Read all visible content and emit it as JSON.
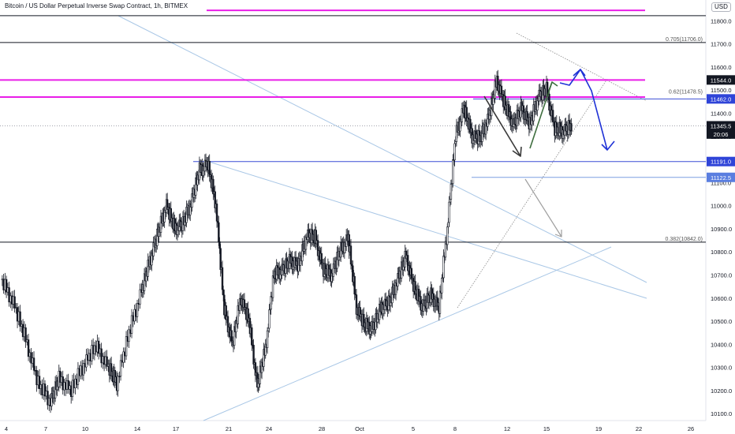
{
  "header": {
    "title": "Bitcoin / US Dollar Perpetual Inverse Swap Contract, 1h, BITMEX",
    "currency": "USD"
  },
  "colors": {
    "candle": "#131722",
    "magenta": "#e91ee8",
    "blue": "#3c4fd6",
    "light_blue": "#a9c7e6",
    "dark_line": "#131722",
    "arrow_blue": "#1f32d6",
    "arrow_gray": "#9e9e9e",
    "arrow_green": "#3f6e3f",
    "badge_dark": "#131722",
    "badge_blue": "#2f44d8",
    "badge_light_blue": "#5a7ee0"
  },
  "chart_data": {
    "type": "candlestick",
    "x_axis": {
      "ticks": [
        "4",
        "7",
        "10",
        "14",
        "17",
        "21",
        "24",
        "28",
        "Oct",
        "5",
        "8",
        "12",
        "15",
        "19",
        "22",
        "26"
      ]
    },
    "y_axis": {
      "range": [
        10070,
        11890
      ],
      "ticks": [
        10100,
        10200,
        10300,
        10400,
        10500,
        10600,
        10700,
        10800,
        10900,
        11000,
        11100,
        11200,
        11300,
        11400,
        11500,
        11600,
        11700,
        11800
      ]
    },
    "price_labels": [
      {
        "value": 11544.0,
        "label": "11544.0",
        "style": "dark"
      },
      {
        "value": 11462.0,
        "label": "11462.0",
        "style": "blue"
      },
      {
        "value": 11345.5,
        "label": "11345.5",
        "style": "dark"
      },
      {
        "value": 11310,
        "label": "20:06",
        "style": "dark"
      },
      {
        "value": 11191.0,
        "label": "11191.0",
        "style": "blue"
      },
      {
        "value": 11122.5,
        "label": "11122.5",
        "style": "light_blue"
      }
    ],
    "fib_levels": [
      {
        "value": 11706.0,
        "label": "0.705(11706.0)"
      },
      {
        "value": 11478.5,
        "label": "0.62(11478.5)"
      },
      {
        "value": 10842.0,
        "label": "0.382(10842.0)"
      }
    ],
    "horizontal_lines": [
      {
        "value": 11845,
        "style": "magenta"
      },
      {
        "value": 11822,
        "style": "dark"
      },
      {
        "value": 11706,
        "style": "dark"
      },
      {
        "value": 11544,
        "style": "magenta"
      },
      {
        "value": 11470,
        "style": "magenta"
      },
      {
        "value": 11462,
        "style": "blue"
      },
      {
        "value": 11345.5,
        "style": "dotted"
      },
      {
        "value": 11191,
        "style": "blue"
      },
      {
        "value": 11122.5,
        "style": "light_blue"
      },
      {
        "value": 10842,
        "style": "dark"
      }
    ],
    "candles": [
      {
        "t": 0,
        "c": 10680
      },
      {
        "t": 1.5,
        "c": 10580
      },
      {
        "t": 3,
        "c": 10420
      },
      {
        "t": 4.5,
        "c": 10230
      },
      {
        "t": 6,
        "c": 10150
      },
      {
        "t": 7,
        "c": 10250
      },
      {
        "t": 8.5,
        "c": 10200
      },
      {
        "t": 10,
        "c": 10310
      },
      {
        "t": 11.5,
        "c": 10390
      },
      {
        "t": 13,
        "c": 10300
      },
      {
        "t": 14,
        "c": 10230
      },
      {
        "t": 15.5,
        "c": 10450
      },
      {
        "t": 17,
        "c": 10630
      },
      {
        "t": 18,
        "c": 10760
      },
      {
        "t": 19,
        "c": 10880
      },
      {
        "t": 20,
        "c": 11000
      },
      {
        "t": 21,
        "c": 10900
      },
      {
        "t": 22,
        "c": 10920
      },
      {
        "t": 23,
        "c": 11010
      },
      {
        "t": 24,
        "c": 11150
      },
      {
        "t": 25,
        "c": 11180
      },
      {
        "t": 26,
        "c": 11000
      },
      {
        "t": 27,
        "c": 10550
      },
      {
        "t": 28,
        "c": 10400
      },
      {
        "t": 29,
        "c": 10600
      },
      {
        "t": 30,
        "c": 10500
      },
      {
        "t": 31,
        "c": 10220
      },
      {
        "t": 32,
        "c": 10380
      },
      {
        "t": 33,
        "c": 10700
      },
      {
        "t": 34,
        "c": 10720
      },
      {
        "t": 35,
        "c": 10760
      },
      {
        "t": 36,
        "c": 10740
      },
      {
        "t": 37,
        "c": 10870
      },
      {
        "t": 38,
        "c": 10860
      },
      {
        "t": 39,
        "c": 10720
      },
      {
        "t": 40,
        "c": 10700
      },
      {
        "t": 41,
        "c": 10800
      },
      {
        "t": 42,
        "c": 10860
      },
      {
        "t": 43,
        "c": 10560
      },
      {
        "t": 44,
        "c": 10480
      },
      {
        "t": 45,
        "c": 10470
      },
      {
        "t": 46,
        "c": 10560
      },
      {
        "t": 47,
        "c": 10580
      },
      {
        "t": 48,
        "c": 10680
      },
      {
        "t": 49,
        "c": 10780
      },
      {
        "t": 50,
        "c": 10640
      },
      {
        "t": 51,
        "c": 10560
      },
      {
        "t": 52,
        "c": 10610
      },
      {
        "t": 53,
        "c": 10560
      },
      {
        "t": 54,
        "c": 10900
      },
      {
        "t": 55,
        "c": 11300
      },
      {
        "t": 56,
        "c": 11420
      },
      {
        "t": 57,
        "c": 11300
      },
      {
        "t": 58,
        "c": 11290
      },
      {
        "t": 59,
        "c": 11380
      },
      {
        "t": 60,
        "c": 11540
      },
      {
        "t": 61,
        "c": 11430
      },
      {
        "t": 62,
        "c": 11350
      },
      {
        "t": 63,
        "c": 11420
      },
      {
        "t": 64,
        "c": 11350
      },
      {
        "t": 65,
        "c": 11470
      },
      {
        "t": 66,
        "c": 11500
      },
      {
        "t": 67,
        "c": 11330
      },
      {
        "t": 68,
        "c": 11320
      },
      {
        "t": 69,
        "c": 11345
      }
    ]
  }
}
